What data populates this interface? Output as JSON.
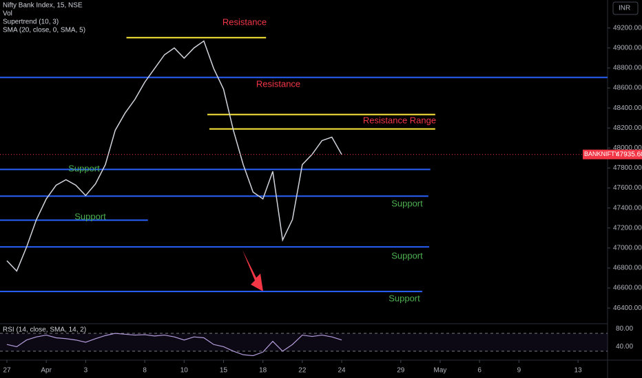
{
  "chart_data": {
    "type": "line",
    "title": "Nifty Bank Index, 15, NSE",
    "indicators": [
      "Vol",
      "Supertrend (10, 3)",
      "SMA (20, close, 0, SMA, 5)"
    ],
    "currency": "INR",
    "symbol": "BANKNIFTY",
    "last_price": {
      "value": 47935.6,
      "label": "47935.60"
    },
    "color": "#d1d4dc",
    "x": [
      0,
      0.5,
      1,
      1.5,
      2,
      2.5,
      3,
      3.5,
      4,
      4.5,
      5,
      5.5,
      6,
      6.5,
      7,
      7.5,
      8,
      8.5,
      9,
      9.5,
      10,
      10.5,
      11,
      11.5,
      12,
      12.5,
      13,
      13.5,
      14,
      14.5,
      15,
      15.5,
      16,
      16.5,
      17
    ],
    "values": [
      46873,
      46770,
      47010,
      47285,
      47491,
      47628,
      47683,
      47628,
      47525,
      47642,
      47834,
      48177,
      48349,
      48486,
      48658,
      48795,
      48932,
      49001,
      48898,
      49001,
      49070,
      48795,
      48589,
      48177,
      47834,
      47559,
      47491,
      47766,
      47079,
      47285,
      47834,
      47937,
      48074,
      48109,
      47935.6
    ],
    "xlim": [
      -0.35,
      30.5
    ],
    "xticks": [
      {
        "value": 0,
        "label": "27"
      },
      {
        "value": 2,
        "label": "Apr"
      },
      {
        "value": 4,
        "label": "3"
      },
      {
        "value": 7,
        "label": "8"
      },
      {
        "value": 9,
        "label": "10"
      },
      {
        "value": 11,
        "label": "15"
      },
      {
        "value": 13,
        "label": "18"
      },
      {
        "value": 15,
        "label": "22"
      },
      {
        "value": 17,
        "label": "24"
      },
      {
        "value": 20,
        "label": "29"
      },
      {
        "value": 22,
        "label": "May"
      },
      {
        "value": 24,
        "label": "6"
      },
      {
        "value": 26,
        "label": "9"
      },
      {
        "value": 29,
        "label": "13"
      }
    ],
    "ylim": [
      46250,
      49480
    ],
    "yticks": [
      {
        "value": 46400,
        "label": "46400.00"
      },
      {
        "value": 46600,
        "label": "46600.00"
      },
      {
        "value": 46800,
        "label": "46800.00"
      },
      {
        "value": 47000,
        "label": "47000.00"
      },
      {
        "value": 47200,
        "label": "47200.00"
      },
      {
        "value": 47400,
        "label": "47400.00"
      },
      {
        "value": 47600,
        "label": "47600.00"
      },
      {
        "value": 47800,
        "label": "47800.00"
      },
      {
        "value": 48000,
        "label": "48000.00"
      },
      {
        "value": 48200,
        "label": "48200.00"
      },
      {
        "value": 48400,
        "label": "48400.00"
      },
      {
        "value": 48600,
        "label": "48600.00"
      },
      {
        "value": 48800,
        "label": "48800.00"
      },
      {
        "value": 49000,
        "label": "49000.00"
      },
      {
        "value": 49200,
        "label": "49200.00"
      }
    ],
    "levels": [
      {
        "value": 49104,
        "x0": 6.07,
        "x1": 13.16,
        "color": "#ffeb3b",
        "label": "Resistance"
      },
      {
        "value": 48706,
        "x0": -0.35,
        "x1": 30.5,
        "color": "#2962ff",
        "label": "Resistance"
      },
      {
        "value": 48335,
        "x0": 10.18,
        "x1": 21.75,
        "color": "#ffeb3b",
        "label": "Resistance Range"
      },
      {
        "value": 48191,
        "x0": 10.28,
        "x1": 21.75,
        "color": "#ffeb3b"
      },
      {
        "value": 47786,
        "x0": -0.35,
        "x1": 21.5,
        "color": "#2962ff",
        "label": "Support"
      },
      {
        "value": 47519,
        "x0": -0.35,
        "x1": 21.4,
        "color": "#2962ff",
        "label": "Support"
      },
      {
        "value": 47278,
        "x0": -0.35,
        "x1": 7.16,
        "color": "#2962ff",
        "label": "Support"
      },
      {
        "value": 47011,
        "x0": -0.35,
        "x1": 21.44,
        "color": "#2962ff",
        "label": "Support"
      },
      {
        "value": 46565,
        "x0": -0.35,
        "x1": 21.09,
        "color": "#2962ff",
        "label": "Support"
      }
    ],
    "rsi": {
      "label": "RSI (14, close, SMA, 14, 2)",
      "color": "#b39ddb",
      "values": [
        45,
        40,
        55,
        62,
        66,
        60,
        58,
        55,
        50,
        58,
        65,
        70,
        68,
        66,
        67,
        64,
        66,
        62,
        55,
        62,
        60,
        45,
        40,
        30,
        22,
        20,
        28,
        52,
        30,
        45,
        66,
        63,
        66,
        62,
        55
      ],
      "ylim": [
        13,
        90
      ],
      "yticks": [
        {
          "value": 80,
          "label": "80.00"
        },
        {
          "value": 40,
          "label": "40.00"
        }
      ],
      "bands": [
        70,
        30
      ]
    }
  }
}
